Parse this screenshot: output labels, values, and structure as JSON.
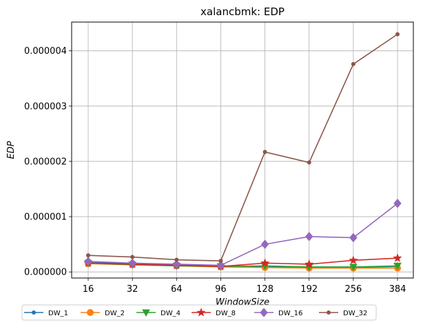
{
  "chart_data": {
    "type": "line",
    "title": "xalancbmk: EDP",
    "xlabel": "WindowSize",
    "ylabel": "EDP",
    "categories": [
      "16",
      "32",
      "64",
      "96",
      "128",
      "192",
      "256",
      "384"
    ],
    "y_ticks": [
      "0.000000",
      "0.000001",
      "0.000002",
      "0.000003",
      "0.000004"
    ],
    "ylim": [
      -1.1e-07,
      4.52e-06
    ],
    "grid": true,
    "legend_placement": "bottom",
    "series": [
      {
        "name": "DW_1",
        "color": "#1f77b4",
        "marker": "point",
        "values": [
          1.8e-07,
          1.5e-07,
          1.3e-07,
          1.1e-07,
          9e-08,
          8e-08,
          8e-08,
          1e-07
        ]
      },
      {
        "name": "DW_2",
        "color": "#ff7f0e",
        "marker": "circle",
        "values": [
          1.5e-07,
          1.3e-07,
          1.1e-07,
          9e-08,
          8e-08,
          7e-08,
          7e-08,
          7e-08
        ]
      },
      {
        "name": "DW_4",
        "color": "#2ca02c",
        "marker": "triangle",
        "values": [
          1.6e-07,
          1.3e-07,
          1.1e-07,
          1e-07,
          1.1e-07,
          9e-08,
          9e-08,
          1.1e-07
        ]
      },
      {
        "name": "DW_8",
        "color": "#d62728",
        "marker": "star",
        "values": [
          1.6e-07,
          1.4e-07,
          1.2e-07,
          1e-07,
          1.6e-07,
          1.4e-07,
          2.1e-07,
          2.5e-07
        ]
      },
      {
        "name": "DW_16",
        "color": "#9467bd",
        "marker": "diamond",
        "values": [
          1.9e-07,
          1.6e-07,
          1.4e-07,
          1.2e-07,
          5e-07,
          6.4e-07,
          6.2e-07,
          1.24e-06
        ]
      },
      {
        "name": "DW_32",
        "color": "#8c564b",
        "marker": "point",
        "values": [
          3e-07,
          2.7e-07,
          2.2e-07,
          2e-07,
          2.17e-06,
          1.98e-06,
          3.76e-06,
          4.3e-06
        ]
      }
    ]
  }
}
